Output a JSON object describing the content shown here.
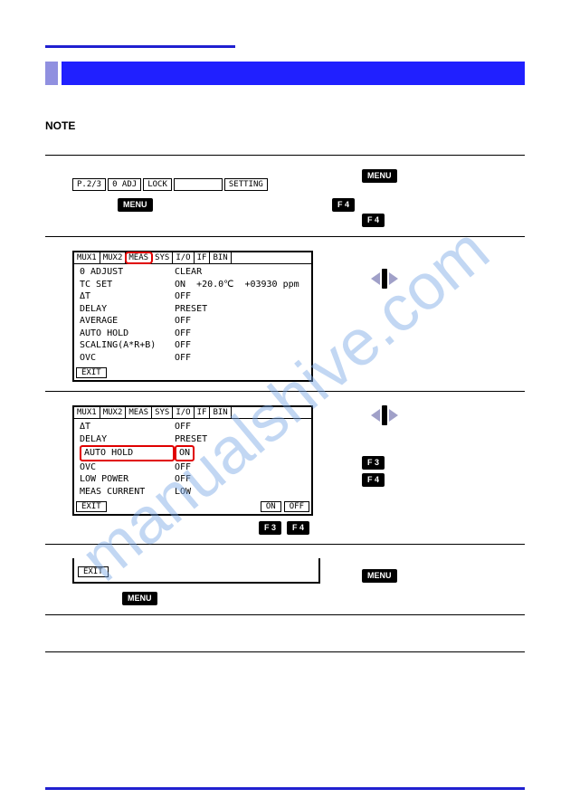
{
  "colors": {
    "accent": "#2020d0",
    "title_light": "#9090e0",
    "title_full": "#2020ff",
    "highlight": "#e00000",
    "watermark": "#7aa8e6"
  },
  "note_label": "NOTE",
  "watermark_text": "manualshive.com",
  "section1": {
    "soft_buttons": [
      "P.2/3",
      "0 ADJ",
      "LOCK",
      "",
      "SETTING"
    ],
    "below_left": "MENU",
    "below_right": "F 4",
    "right_buttons": [
      "MENU",
      "F 4"
    ]
  },
  "section2": {
    "tabs": [
      "MUX1",
      "MUX2",
      "MEAS",
      "SYS",
      "I/O",
      "IF",
      "BIN"
    ],
    "highlight_tab_index": 2,
    "lines": [
      {
        "k": "0 ADJUST",
        "v": "CLEAR"
      },
      {
        "k": "TC SET",
        "v": "ON  +20.0℃  +03930 ppm"
      },
      {
        "k": "ΔT",
        "v": "OFF"
      },
      {
        "k": "DELAY",
        "v": "PRESET"
      },
      {
        "k": "AVERAGE",
        "v": "OFF"
      },
      {
        "k": "AUTO HOLD",
        "v": "OFF"
      },
      {
        "k": "SCALING(A*R+B)",
        "v": "OFF"
      },
      {
        "k": "OVC",
        "v": "OFF"
      }
    ],
    "exit": "EXIT",
    "right_cursor": true
  },
  "section3": {
    "tabs": [
      "MUX1",
      "MUX2",
      "MEAS",
      "SYS",
      "I/O",
      "IF",
      "BIN"
    ],
    "lines": [
      {
        "k": "ΔT",
        "v": "OFF"
      },
      {
        "k": "DELAY",
        "v": "PRESET"
      },
      {
        "k": "AUTO HOLD",
        "v": "ON",
        "hl": true
      },
      {
        "k": "OVC",
        "v": "OFF"
      },
      {
        "k": "LOW POWER",
        "v": "OFF"
      },
      {
        "k": "MEAS CURRENT",
        "v": "LOW"
      }
    ],
    "exit": "EXIT",
    "on": "ON",
    "off": "OFF",
    "below_buttons": [
      "F 3",
      "F 4"
    ],
    "right_cursor": true,
    "right_buttons": [
      "F 3",
      "F 4"
    ]
  },
  "section4": {
    "exit": "EXIT",
    "below": "MENU",
    "right_button": "MENU"
  }
}
